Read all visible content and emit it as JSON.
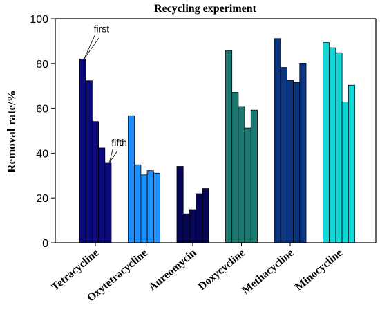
{
  "chart_data": {
    "type": "bar",
    "title": "Recycling experiment",
    "xlabel": "",
    "ylabel": "Removal rate/%",
    "ylim": [
      0,
      100
    ],
    "yticks": [
      0,
      20,
      40,
      60,
      80,
      100
    ],
    "grid": false,
    "categories": [
      "Tetracycline",
      "Oxytetracycline",
      "Aureomycin",
      "Doxycycline",
      "Methacycline",
      "Minocycline"
    ],
    "cycles_per_category": 5,
    "values": [
      [
        82,
        72.3,
        54.1,
        42.3,
        35.8
      ],
      [
        56.7,
        34.8,
        30.3,
        32.2,
        31.1
      ],
      [
        34.1,
        12.9,
        14.8,
        21.9,
        24.2
      ],
      [
        85.8,
        67.1,
        60.8,
        51.2,
        59.2
      ],
      [
        91.1,
        78.2,
        72.5,
        71.6,
        80.1
      ],
      [
        89.3,
        87,
        84.8,
        62.8,
        70.3
      ]
    ],
    "colors": [
      "#0A0A7A",
      "#1E90FF",
      "#050555",
      "#1A7A72",
      "#0A3580",
      "#12D5D5"
    ],
    "annotations": [
      {
        "text": "first",
        "category": 0,
        "cycle": 0
      },
      {
        "text": "fifth",
        "category": 0,
        "cycle": 4
      }
    ]
  }
}
